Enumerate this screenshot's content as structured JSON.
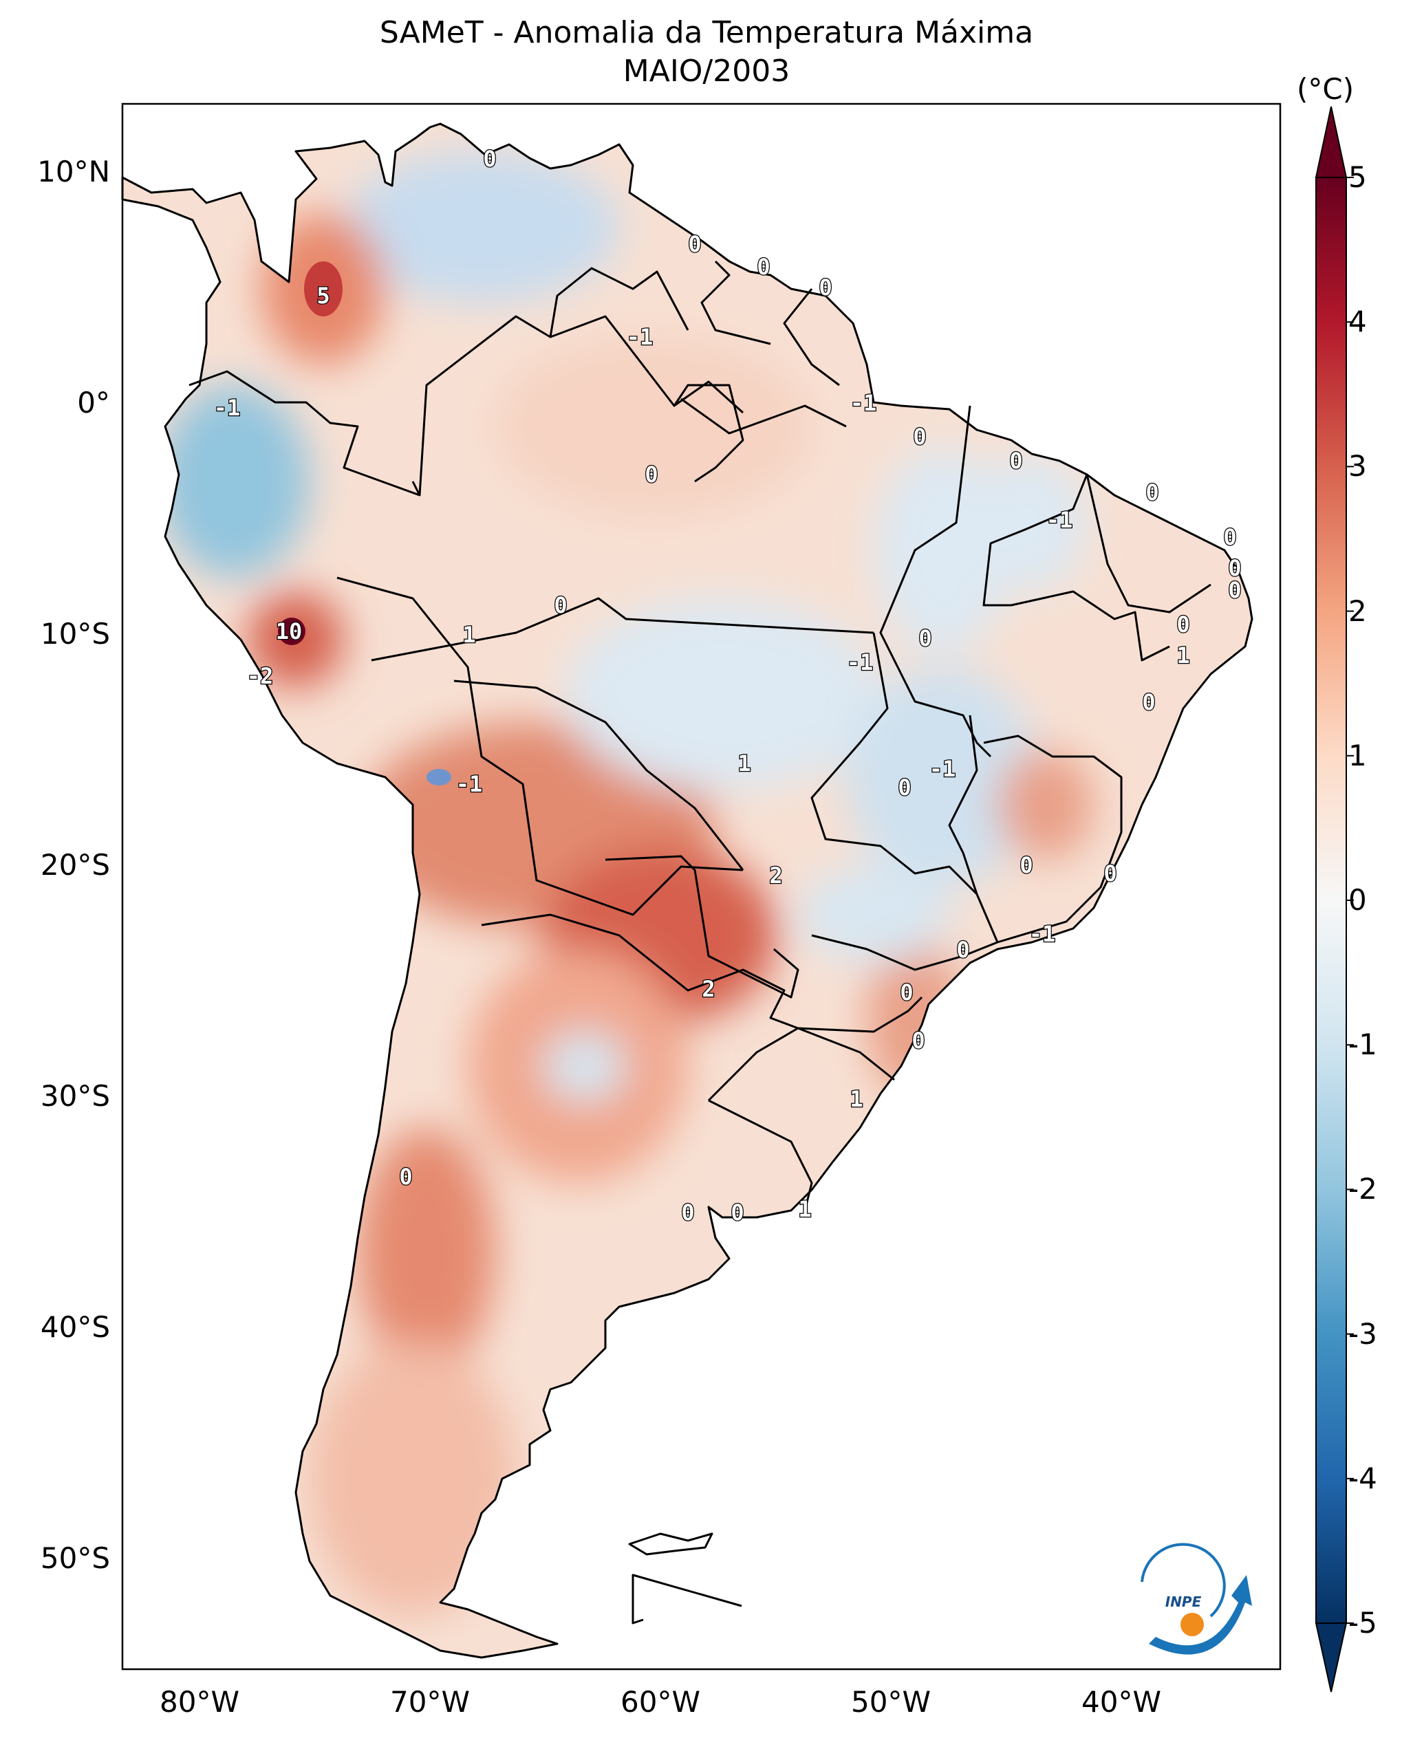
{
  "title": "SAMeT - Anomalia da Temperatura Máxima",
  "subtitle": "MAIO/2003",
  "colorbar": {
    "unit": "(°C)",
    "ticks": [
      "5",
      "4",
      "3",
      "2",
      "1",
      "0",
      "-1",
      "-2",
      "-3",
      "-4",
      "-5"
    ],
    "range": [
      -5,
      5
    ],
    "cmap": "RdBu_r",
    "colors": [
      "#053061",
      "#2166ac",
      "#4393c3",
      "#92c5de",
      "#d1e5f0",
      "#f7f7f7",
      "#fddbc7",
      "#f4a582",
      "#d6604d",
      "#b2182b",
      "#67001f"
    ]
  },
  "axes": {
    "lat_ticks": [
      "10°N",
      "0°",
      "10°S",
      "20°S",
      "30°S",
      "40°S",
      "50°S"
    ],
    "lon_ticks": [
      "80°W",
      "70°W",
      "60°W",
      "50°W",
      "40°W"
    ],
    "lon_range": [
      -83,
      -33
    ],
    "lat_range": [
      -56,
      13
    ]
  },
  "contour_labels": [
    "0",
    "0",
    "0",
    "0",
    "5",
    "-1",
    "-1",
    "-1",
    "0",
    "0",
    "0",
    "-1",
    "0",
    "0",
    "0",
    "0",
    "-1",
    "10",
    "-2",
    "1",
    "0",
    "0",
    "1",
    "-1",
    "1",
    "0",
    "-1",
    "0",
    "2",
    "0",
    "0",
    "0",
    "-1",
    "0",
    "2",
    "0",
    "1",
    "1",
    "0",
    "0",
    "0",
    "0"
  ],
  "logo": {
    "text": "INPE"
  },
  "chart_data": {
    "type": "heatmap",
    "title": "SAMeT - Anomalia da Temperatura Máxima",
    "subtitle": "MAIO/2003",
    "variable": "Anomalia da Temperatura Máxima",
    "units": "°C",
    "xlabel": "",
    "ylabel": "",
    "xlim": [
      -83,
      -33
    ],
    "ylim": [
      -56,
      13
    ],
    "colorbar_range": [
      -5,
      5
    ],
    "colorbar_ticks": [
      -5,
      -4,
      -3,
      -2,
      -1,
      0,
      1,
      2,
      3,
      4,
      5
    ]
  }
}
